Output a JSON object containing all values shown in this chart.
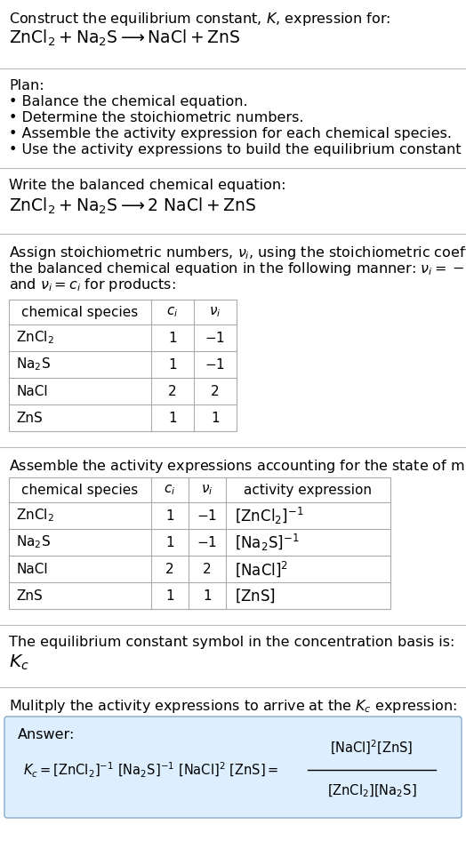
{
  "bg_color": "#ffffff",
  "text_color": "#000000",
  "separator_color": "#bbbbbb",
  "table_border_color": "#aaaaaa",
  "answer_bg_color": "#ddeeff",
  "answer_border_color": "#88aacc",
  "sec1_line1": "Construct the equilibrium constant, $K$, expression for:",
  "sec1_line2": "$\\mathrm{ZnCl_2 + Na_2S \\longrightarrow NaCl + ZnS}$",
  "plan_header": "Plan:",
  "plan_bullets": [
    "\\u2022 Balance the chemical equation.",
    "\\u2022 Determine the stoichiometric numbers.",
    "\\u2022 Assemble the activity expression for each chemical species.",
    "\\u2022 Use the activity expressions to build the equilibrium constant expression."
  ],
  "balanced_header": "Write the balanced chemical equation:",
  "balanced_eq": "$\\mathrm{ZnCl_2 + Na_2S \\longrightarrow 2\\ NaCl + ZnS}$",
  "stoich_intro_parts": [
    "Assign stoichiometric numbers, $\\nu_i$, using the stoichiometric coefficients, $c_i$, from",
    "the balanced chemical equation in the following manner: $\\nu_i = -c_i$ for reactants",
    "and $\\nu_i = c_i$ for products:"
  ],
  "table1_col_headers": [
    "chemical species",
    "$c_i$",
    "$\\nu_i$"
  ],
  "table1_rows": [
    [
      "$\\mathrm{ZnCl_2}$",
      "1",
      "$-1$"
    ],
    [
      "$\\mathrm{Na_2S}$",
      "1",
      "$-1$"
    ],
    [
      "NaCl",
      "2",
      "2"
    ],
    [
      "ZnS",
      "1",
      "1"
    ]
  ],
  "activity_intro": "Assemble the activity expressions accounting for the state of matter and $\\nu_i$:",
  "table2_col_headers": [
    "chemical species",
    "$c_i$",
    "$\\nu_i$",
    "activity expression"
  ],
  "table2_rows": [
    [
      "$\\mathrm{ZnCl_2}$",
      "1",
      "$-1$",
      "$[\\mathrm{ZnCl_2}]^{-1}$"
    ],
    [
      "$\\mathrm{Na_2S}$",
      "1",
      "$-1$",
      "$[\\mathrm{Na_2S}]^{-1}$"
    ],
    [
      "NaCl",
      "2",
      "2",
      "$[\\mathrm{NaCl}]^2$"
    ],
    [
      "ZnS",
      "1",
      "1",
      "$[\\mathrm{ZnS}]$"
    ]
  ],
  "kc_intro": "The equilibrium constant symbol in the concentration basis is:",
  "kc_symbol": "$K_c$",
  "multiply_intro": "Mulitply the activity expressions to arrive at the $K_c$ expression:",
  "answer_label": "Answer:",
  "kc_eq_left": "$K_c = [\\mathrm{ZnCl_2}]^{-1} [\\mathrm{Na_2S}]^{-1} [\\mathrm{NaCl}]^2 [\\mathrm{ZnS}] = $",
  "frac_num": "$[\\mathrm{NaCl}]^2 [\\mathrm{ZnS}]$",
  "frac_den": "$[\\mathrm{ZnCl_2}] [\\mathrm{Na_2S}]$"
}
